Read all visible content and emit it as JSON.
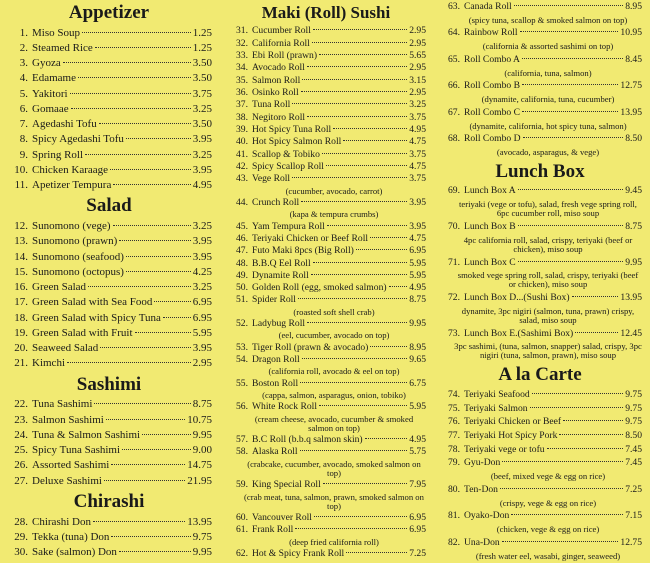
{
  "columns": [
    {
      "sections": [
        {
          "title": "Appetizer",
          "items": [
            {
              "num": "1.",
              "name": "Miso Soup",
              "price": "1.25"
            },
            {
              "num": "2.",
              "name": "Steamed Rice",
              "price": "1.25"
            },
            {
              "num": "3.",
              "name": "Gyoza",
              "price": "3.50"
            },
            {
              "num": "4.",
              "name": "Edamame",
              "price": "3.50"
            },
            {
              "num": "5.",
              "name": "Yakitori",
              "price": "3.75"
            },
            {
              "num": "6.",
              "name": "Gomaae",
              "price": "3.25"
            },
            {
              "num": "7.",
              "name": "Agedashi Tofu",
              "price": "3.50"
            },
            {
              "num": "8.",
              "name": "Spicy Agedashi Tofu",
              "price": "3.95"
            },
            {
              "num": "9.",
              "name": "Spring Roll",
              "price": "3.25"
            },
            {
              "num": "10.",
              "name": "Chicken Karaage",
              "price": "3.95"
            },
            {
              "num": "11.",
              "name": "Apetizer Tempura",
              "price": "4.95"
            }
          ]
        },
        {
          "title": "Salad",
          "items": [
            {
              "num": "12.",
              "name": "Sunomono (vege)",
              "price": "3.25"
            },
            {
              "num": "13.",
              "name": "Sunomono (prawn)",
              "price": "3.95"
            },
            {
              "num": "14.",
              "name": "Sunomono (seafood)",
              "price": "3.95"
            },
            {
              "num": "15.",
              "name": "Sunomono (octopus)",
              "price": "4.25"
            },
            {
              "num": "16.",
              "name": "Green Salad",
              "price": "3.25"
            },
            {
              "num": "17.",
              "name": "Green Salad with Sea Food",
              "price": "6.95"
            },
            {
              "num": "18.",
              "name": "Green Salad with Spicy Tuna",
              "price": "6.95"
            },
            {
              "num": "19.",
              "name": "Green Salad with Fruit",
              "price": "5.95"
            },
            {
              "num": "20.",
              "name": "Seaweed Salad",
              "price": "3.95"
            },
            {
              "num": "21.",
              "name": "Kimchi",
              "price": "2.95"
            }
          ]
        },
        {
          "title": "Sashimi",
          "items": [
            {
              "num": "22.",
              "name": "Tuna Sashimi",
              "price": "8.75"
            },
            {
              "num": "23.",
              "name": "Salmon Sashimi",
              "price": "10.75"
            },
            {
              "num": "24.",
              "name": "Tuna & Salmon Sashimi",
              "price": "9.95"
            },
            {
              "num": "25.",
              "name": "Spicy Tuna Sashimi",
              "price": "9.00"
            },
            {
              "num": "26.",
              "name": "Assorted Sashimi",
              "price": "14.75"
            },
            {
              "num": "27.",
              "name": "Deluxe Sashimi",
              "price": "21.95"
            }
          ]
        },
        {
          "title": "Chirashi",
          "items": [
            {
              "num": "28.",
              "name": "Chirashi Don",
              "price": "13.95"
            },
            {
              "num": "29.",
              "name": "Tekka (tuna) Don",
              "price": "9.75"
            },
            {
              "num": "30.",
              "name": "Sake (salmon) Don",
              "price": "9.95"
            }
          ]
        }
      ]
    },
    {
      "sections": [
        {
          "title": "Maki (Roll) Sushi",
          "items": [
            {
              "num": "31.",
              "name": "Cucumber Roll",
              "price": "2.95"
            },
            {
              "num": "32.",
              "name": "California Roll",
              "price": "2.95"
            },
            {
              "num": "33.",
              "name": "Ebi Roll (prawn)",
              "price": "5.65"
            },
            {
              "num": "34.",
              "name": "Avocado Roll",
              "price": "2.95"
            },
            {
              "num": "35.",
              "name": "Salmon Roll",
              "price": "3.15"
            },
            {
              "num": "36.",
              "name": "Osinko Roll",
              "price": "2.95"
            },
            {
              "num": "37.",
              "name": "Tuna Roll",
              "price": "3.25"
            },
            {
              "num": "38.",
              "name": "Negitoro Roll",
              "price": "3.75"
            },
            {
              "num": "39.",
              "name": "Hot Spicy Tuna Roll",
              "price": "4.95"
            },
            {
              "num": "40.",
              "name": "Hot Spicy Salmon Roll",
              "price": "4.75"
            },
            {
              "num": "41.",
              "name": "Scallop & Tobiko",
              "price": "3.75"
            },
            {
              "num": "42.",
              "name": "Spicy Scallop Roll",
              "price": "4.75"
            },
            {
              "num": "43.",
              "name": "Vege Roll",
              "price": "3.75",
              "desc": "(cucumber, avocado, carrot)"
            },
            {
              "num": "44.",
              "name": "Crunch Roll",
              "price": "3.95",
              "desc": "(kapa & tempura crumbs)"
            },
            {
              "num": "45.",
              "name": "Yam Tempura Roll",
              "price": "3.95"
            },
            {
              "num": "46.",
              "name": "Teriyaki Chicken or Beef Roll",
              "price": "4.75"
            },
            {
              "num": "47.",
              "name": "Futo Maki 8pcs (Big Roll)",
              "price": "6.95"
            },
            {
              "num": "48.",
              "name": "B.B.Q Eel Roll",
              "price": "5.95"
            },
            {
              "num": "49.",
              "name": "Dynamite Roll",
              "price": "5.95"
            },
            {
              "num": "50.",
              "name": "Golden Roll (egg, smoked salmon)",
              "price": "4.95"
            },
            {
              "num": "51.",
              "name": "Spider Roll",
              "price": "8.75",
              "desc": "(roasted soft shell crab)"
            },
            {
              "num": "52.",
              "name": "Ladybug Roll",
              "price": "9.95",
              "desc": "(eel, cucumber, avocado on top)"
            },
            {
              "num": "53.",
              "name": "Tiger Roll (prawn & avocado)",
              "price": "8.95"
            },
            {
              "num": "54.",
              "name": "Dragon Roll",
              "price": "9.65",
              "desc": "(california roll, avocado & eel on top)"
            },
            {
              "num": "55.",
              "name": "Boston Roll",
              "price": "6.75",
              "desc": "(cappa, salmon, asparagus, onion, tobiko)"
            },
            {
              "num": "56.",
              "name": "White Rock Roll",
              "price": "5.95",
              "desc": "(cream cheese, avocado, cucumber & smoked salmon on top)"
            },
            {
              "num": "57.",
              "name": "B.C Roll (b.b.q salmon skin)",
              "price": "4.95"
            },
            {
              "num": "58.",
              "name": "Alaska Roll",
              "price": "5.75",
              "desc": "(crabcake, cucumber, avocado, smoked salmon on top)"
            },
            {
              "num": "59.",
              "name": "King Special Roll",
              "price": "7.95",
              "desc": "(crab meat, tuna, salmon, prawn, smoked salmon on top)"
            },
            {
              "num": "60.",
              "name": "Vancouver Roll",
              "price": "6.95"
            },
            {
              "num": "61.",
              "name": "Frank Roll",
              "price": "6.95",
              "desc": "(deep fried california roll)"
            },
            {
              "num": "62.",
              "name": "Hot & Spicy Frank Roll",
              "price": "7.25"
            }
          ]
        }
      ]
    },
    {
      "sections": [
        {
          "items": [
            {
              "num": "63.",
              "name": "Canada Roll",
              "price": "8.95",
              "desc": "(spicy tuna, scallop & smoked salmon on top)"
            },
            {
              "num": "64.",
              "name": "Rainbow Roll",
              "price": "10.95",
              "desc": "(california & assorted sashimi on top)"
            },
            {
              "num": "65.",
              "name": "Roll Combo A",
              "price": "8.45",
              "desc": "(california, tuna, salmon)"
            },
            {
              "num": "66.",
              "name": "Roll Combo B",
              "price": "12.75",
              "desc": "(dynamite, california, tuna, cucumber)"
            },
            {
              "num": "67.",
              "name": "Roll Combo C",
              "price": "13.95",
              "desc": "(dynamite, california, hot spicy tuna, salmon)"
            },
            {
              "num": "68.",
              "name": "Roll Combo D",
              "price": "8.50",
              "desc": "(avocado, asparagus, & vege)"
            }
          ]
        },
        {
          "title": "Lunch Box",
          "items": [
            {
              "num": "69.",
              "name": "Lunch Box A",
              "price": "9.45",
              "desc": "teriyaki (vege or tofu), salad, fresh vege spring roll, 6pc cucumber roll, miso soup"
            },
            {
              "num": "70.",
              "name": "Lunch Box B",
              "price": "8.75",
              "desc": "4pc california roll, salad, crispy, teriyaki (beef or chicken), miso soup"
            },
            {
              "num": "71.",
              "name": "Lunch Box C",
              "price": "9.95",
              "desc": "smoked vege spring roll, salad, crispy, teriyaki (beef or chicken), miso soup"
            },
            {
              "num": "72.",
              "name": "Lunch Box D...(Sushi Box)",
              "price": "13.95",
              "desc": "dynamite, 3pc nigiri (salmon, tuna, prawn) crispy, salad, miso soup"
            },
            {
              "num": "73.",
              "name": "Lunch Box E.(Sashimi Box)",
              "price": "12.45",
              "desc": "3pc sashimi, (tuna, salmon, snapper) salad, crispy, 3pc nigiri (tuna, salmon, prawn), miso soup"
            }
          ]
        },
        {
          "title": "A la Carte",
          "items": [
            {
              "num": "74.",
              "name": "Teriyaki Seafood",
              "price": "9.75"
            },
            {
              "num": "75.",
              "name": "Teriyaki Salmon",
              "price": "9.75"
            },
            {
              "num": "76.",
              "name": "Teriyaki Chicken or Beef",
              "price": "9.75"
            },
            {
              "num": "77.",
              "name": "Teriyaki Hot Spicy Pork",
              "price": "8.50"
            },
            {
              "num": "78.",
              "name": "Teriyaki vege or tofu",
              "price": "7.45"
            },
            {
              "num": "79.",
              "name": "Gyu-Don",
              "price": "7.45",
              "desc": "(beef, mixed vege & egg on rice)"
            },
            {
              "num": "80.",
              "name": "Ten-Don",
              "price": "7.25",
              "desc": "(crispy, vege & egg on rice)"
            },
            {
              "num": "81.",
              "name": "Oyako-Don",
              "price": "7.15",
              "desc": "(chicken, vege & egg on rice)"
            },
            {
              "num": "82.",
              "name": "Una-Don",
              "price": "12.75",
              "desc": "(fresh water eel, wasabi, ginger, seaweed)"
            }
          ]
        }
      ]
    }
  ]
}
